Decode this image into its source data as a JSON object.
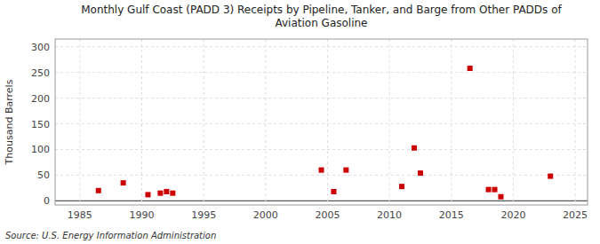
{
  "chart_data": {
    "type": "scatter",
    "title": "Monthly Gulf Coast (PADD 3) Receipts by Pipeline, Tanker, and Barge from Other PADDs of\nAviation Gasoline",
    "y_label": "Thousand Barrels",
    "source": "Source: U.S. Energy Information Administration",
    "x": [
      1986.5,
      1988.5,
      1990.5,
      1991.5,
      1992.0,
      1992.5,
      2004.5,
      2005.5,
      2006.5,
      2011.0,
      2012.0,
      2012.5,
      2016.5,
      2018.0,
      2018.5,
      2019.0,
      2023.0
    ],
    "values": [
      20,
      35,
      12,
      15,
      18,
      15,
      60,
      18,
      60,
      28,
      103,
      54,
      258,
      22,
      22,
      8,
      48
    ],
    "color": "#cc0000",
    "marker": "square",
    "xlim": [
      1983,
      2026
    ],
    "ylim": [
      -8,
      315
    ],
    "xticks": [
      1985,
      1990,
      1995,
      2000,
      2005,
      2010,
      2015,
      2020,
      2025
    ],
    "yticks": [
      0,
      50,
      100,
      150,
      200,
      250,
      300
    ],
    "grid": true
  }
}
